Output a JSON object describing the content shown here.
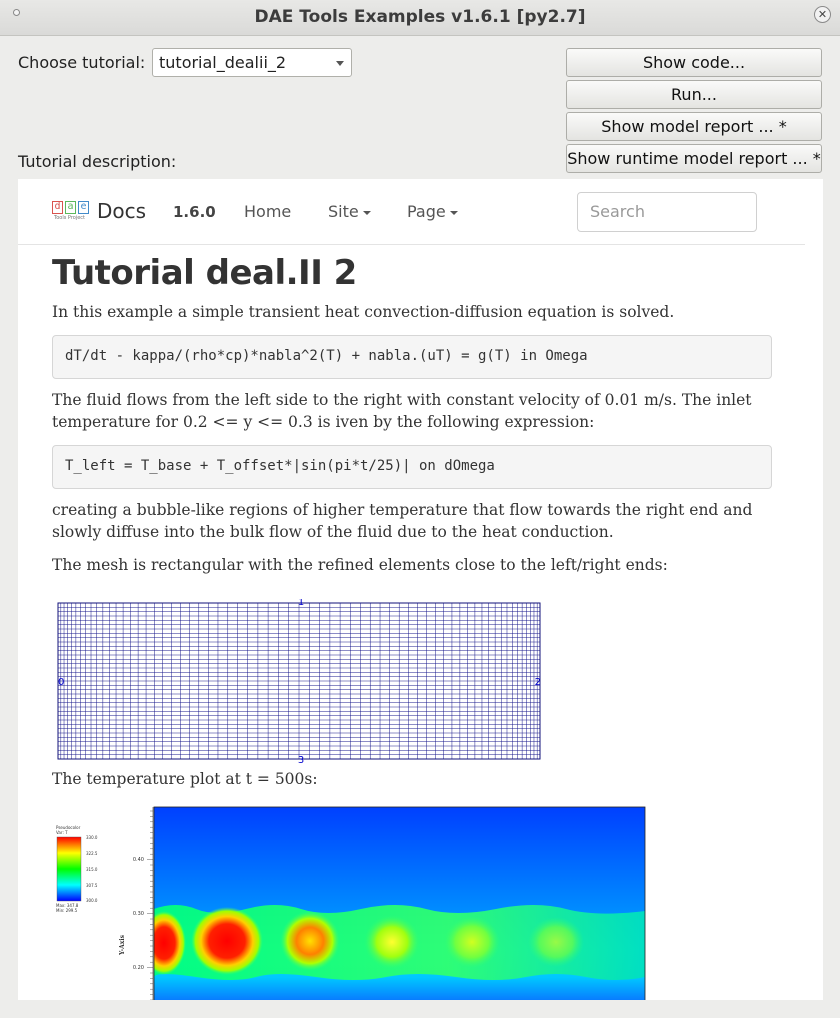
{
  "window": {
    "title": "DAE Tools Examples v1.6.1 [py2.7]",
    "close_glyph": "✕"
  },
  "controls": {
    "choose_label": "Choose tutorial:",
    "selected_tutorial": "tutorial_dealii_2",
    "description_label": "Tutorial description:",
    "buttons": {
      "show_code": "Show code...",
      "run": "Run...",
      "show_model_report": "Show model report ... *",
      "show_runtime_report": "Show runtime model report ... *"
    }
  },
  "docs": {
    "logo_letters": [
      "d",
      "a",
      "e"
    ],
    "logo_subtext": "Tools Project",
    "brand": "Docs",
    "version": "1.6.0",
    "nav": {
      "home": "Home",
      "site": "Site",
      "page": "Page"
    },
    "search_placeholder": "Search",
    "heading": "Tutorial deal.II 2",
    "intro": "In this example a simple transient heat convection-diffusion equation is solved.",
    "equation1": "dT/dt - kappa/(rho*cp)*nabla^2(T) + nabla.(uT) = g(T) in Omega",
    "flow_text": "The fluid flows from the left side to the right with constant velocity of 0.01 m/s. The inlet temperature for 0.2 <= y <= 0.3 is iven by the following expression:",
    "equation2": "T_left = T_base + T_offset*|sin(pi*t/25)| on dOmega",
    "bubble_text": "creating a bubble-like regions of higher temperature that flow towards the right end and slowly diffuse into the bulk flow of the fluid due to the heat conduction.",
    "mesh_text": "The mesh is rectangular with the refined elements close to the left/right ends:",
    "mesh_labels": {
      "top": "1",
      "left": "0",
      "right": "2",
      "bottom": "3"
    },
    "temp_text": "The temperature plot at t = 500s:",
    "plot": {
      "legend_title": "Pseudocolor",
      "legend_var": "Var: T",
      "legend_ticks": [
        "330.0",
        "322.5",
        "315.0",
        "307.5",
        "300.0"
      ],
      "legend_max": "Max: 347.8",
      "legend_min": "Min: 299.5",
      "y_axis_label": "Y-Axis",
      "y_ticks": [
        "0.40",
        "0.30",
        "0.20"
      ]
    }
  }
}
